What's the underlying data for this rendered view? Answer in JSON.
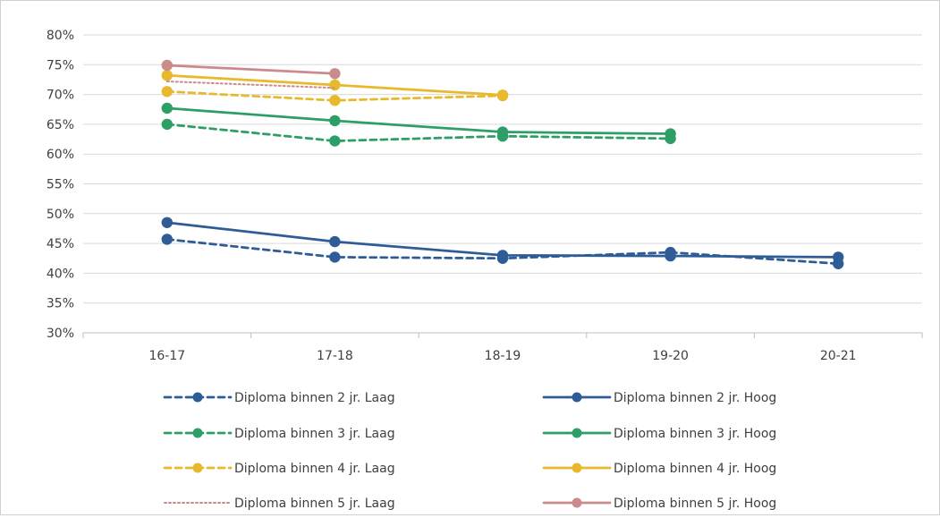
{
  "chart_data": {
    "type": "line",
    "categories": [
      "16-17",
      "17-18",
      "18-19",
      "19-20",
      "20-21"
    ],
    "ylim": [
      0.3,
      0.8
    ],
    "yticks": [
      0.3,
      0.35,
      0.4,
      0.45,
      0.5,
      0.55,
      0.6,
      0.65,
      0.7,
      0.75,
      0.8
    ],
    "ytick_labels": [
      "30%",
      "35%",
      "40%",
      "45%",
      "50%",
      "55%",
      "60%",
      "65%",
      "70%",
      "75%",
      "80%"
    ],
    "grid": true,
    "legend_position": "bottom",
    "series": [
      {
        "name": "Diploma binnen 2 jr. Laag",
        "color": "#2e5c97",
        "dash": "dashed",
        "markers": true,
        "values": [
          0.457,
          0.427,
          0.425,
          0.435,
          0.416
        ]
      },
      {
        "name": "Diploma binnen 2 jr. Hoog",
        "color": "#2e5c97",
        "dash": "solid",
        "markers": true,
        "values": [
          0.485,
          0.453,
          0.43,
          0.429,
          0.427
        ]
      },
      {
        "name": "Diploma binnen 3 jr. Laag",
        "color": "#2e9e67",
        "dash": "dashed",
        "markers": true,
        "values": [
          0.65,
          0.622,
          0.63,
          0.626,
          null
        ]
      },
      {
        "name": "Diploma binnen 3 jr. Hoog",
        "color": "#2e9e67",
        "dash": "solid",
        "markers": true,
        "values": [
          0.677,
          0.656,
          0.637,
          0.634,
          null
        ]
      },
      {
        "name": "Diploma binnen 4 jr. Laag",
        "color": "#e8b92c",
        "dash": "dashed",
        "markers": true,
        "values": [
          0.705,
          0.69,
          0.698,
          null,
          null
        ]
      },
      {
        "name": "Diploma binnen 4 jr. Hoog",
        "color": "#e8b92c",
        "dash": "solid",
        "markers": true,
        "values": [
          0.732,
          0.716,
          0.699,
          null,
          null
        ]
      },
      {
        "name": "Diploma binnen 5 jr. Laag",
        "color": "#c98b8b",
        "dash": "dotted",
        "markers": false,
        "values": [
          0.722,
          0.711,
          null,
          null,
          null
        ]
      },
      {
        "name": "Diploma binnen 5 jr. Hoog",
        "color": "#c98b8b",
        "dash": "solid",
        "markers": true,
        "values": [
          0.749,
          0.735,
          null,
          null,
          null
        ]
      }
    ]
  }
}
